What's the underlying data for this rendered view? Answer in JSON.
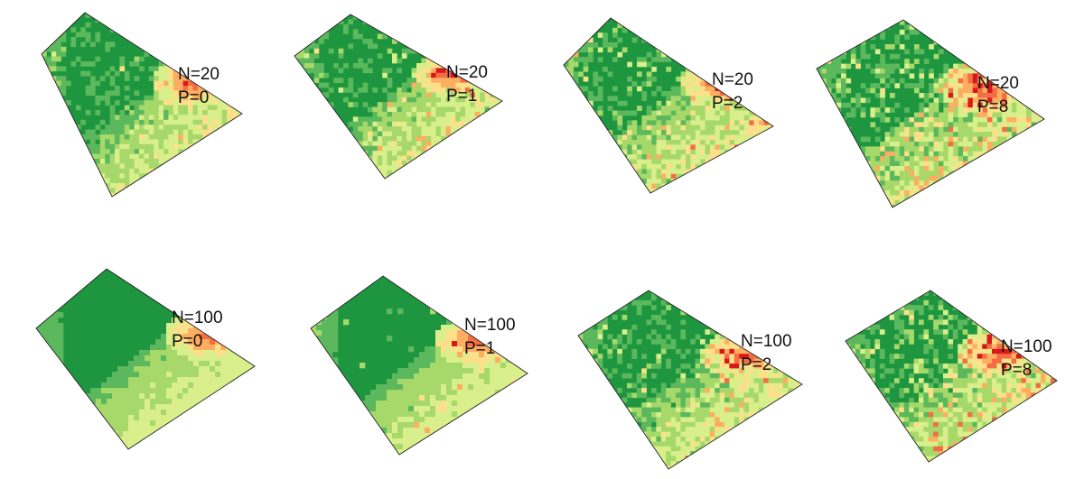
{
  "colors": {
    "dark_green": "#1e9640",
    "mid_green": "#5cb85c",
    "light_green": "#a6d96a",
    "pale_green": "#d9ef8b",
    "cream": "#fee08b",
    "peach": "#fdae61",
    "orange": "#f46d43",
    "red": "#d7191c",
    "outline": "#222222"
  },
  "panels": [
    {
      "n_label": "N=20",
      "p_label": "P=0",
      "noise": 0.03,
      "smooth": 1
    },
    {
      "n_label": "N=20",
      "p_label": "P=1",
      "noise": 0.1,
      "smooth": 1
    },
    {
      "n_label": "N=20",
      "p_label": "P=2",
      "noise": 0.2,
      "smooth": 1
    },
    {
      "n_label": "N=20",
      "p_label": "P=8",
      "noise": 0.42,
      "smooth": 1
    },
    {
      "n_label": "N=100",
      "p_label": "P=0",
      "noise": 0.0,
      "smooth": 3
    },
    {
      "n_label": "N=100",
      "p_label": "P=1",
      "noise": 0.06,
      "smooth": 2
    },
    {
      "n_label": "N=100",
      "p_label": "P=2",
      "noise": 0.18,
      "smooth": 1
    },
    {
      "n_label": "N=100",
      "p_label": "P=8",
      "noise": 0.4,
      "smooth": 1
    }
  ]
}
